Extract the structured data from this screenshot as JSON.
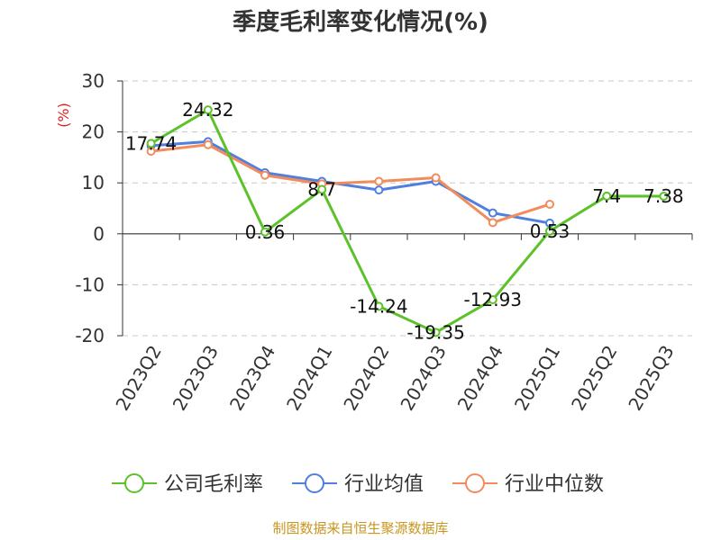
{
  "chart_data": {
    "type": "line",
    "title": "季度毛利率变化情况(%)",
    "ylabel": "(%)",
    "ylim": [
      -20,
      30
    ],
    "yticks": [
      30,
      20,
      10,
      0,
      -10,
      -20
    ],
    "grid": true,
    "legend_position": "bottom",
    "categories": [
      "2023Q2",
      "2023Q3",
      "2023Q4",
      "2024Q1",
      "2024Q2",
      "2024Q3",
      "2024Q4",
      "2025Q1",
      "2025Q2",
      "2025Q3"
    ],
    "series": [
      {
        "name": "公司毛利率",
        "color": "#5cc22a",
        "values": [
          17.74,
          24.32,
          0.36,
          8.7,
          -14.24,
          -19.35,
          -12.93,
          0.53,
          7.4,
          7.38
        ],
        "labels": [
          "17.74",
          "24.32",
          "0.36",
          "8.7",
          "-14.24",
          "-19.35",
          "-12.93",
          "0.53",
          "7.4",
          "7.38"
        ]
      },
      {
        "name": "行业均值",
        "color": "#4f7fdf",
        "values": [
          17.3,
          18.1,
          12.0,
          10.3,
          8.6,
          10.3,
          4.1,
          2.1,
          null,
          null
        ]
      },
      {
        "name": "行业中位数",
        "color": "#f28c5c",
        "values": [
          16.2,
          17.5,
          11.5,
          9.8,
          10.3,
          11.0,
          2.2,
          5.8,
          null,
          null
        ]
      }
    ],
    "source": "制图数据来自恒生聚源数据库"
  }
}
